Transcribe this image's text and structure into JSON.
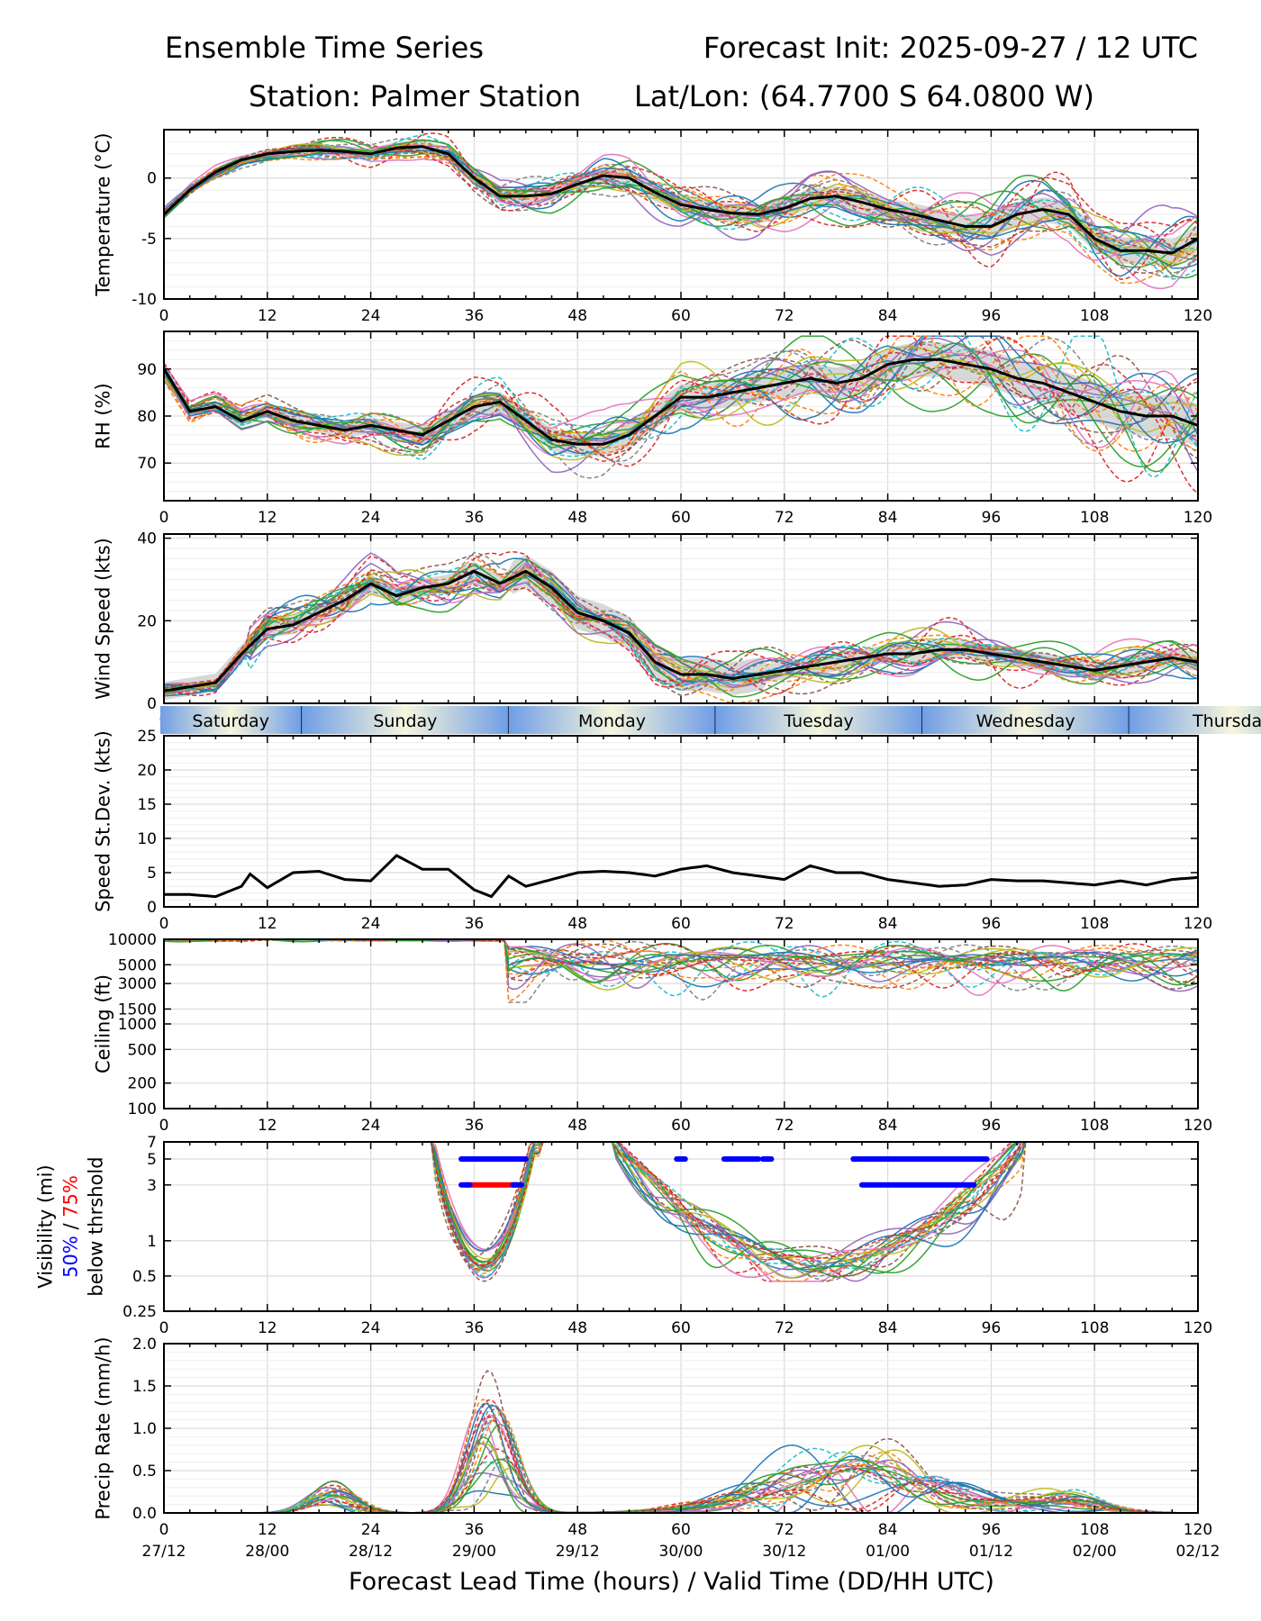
{
  "header": {
    "title_left": "Ensemble Time Series",
    "title_right": "Forecast Init: 2025-09-27 / 12 UTC",
    "station": "Station: Palmer Station",
    "latlon": "Lat/Lon: (64.7700 S 64.0800 W)"
  },
  "x_axis": {
    "label": "Forecast Lead Time (hours) / Valid Time (DD/HH UTC)",
    "ticks": [
      0,
      12,
      24,
      36,
      48,
      60,
      72,
      84,
      96,
      108,
      120
    ],
    "tick_labels": [
      "0",
      "12",
      "24",
      "36",
      "48",
      "60",
      "72",
      "84",
      "96",
      "108",
      "120"
    ],
    "valid_time_labels": [
      "27/12",
      "28/00",
      "28/12",
      "29/00",
      "29/12",
      "30/00",
      "30/12",
      "01/00",
      "01/12",
      "02/00",
      "02/12"
    ],
    "range": [
      0,
      120
    ]
  },
  "day_band": {
    "days": [
      {
        "label": "Saturday",
        "start": -0.5,
        "end": 16
      },
      {
        "label": "Sunday",
        "start": 16,
        "end": 40
      },
      {
        "label": "Monday",
        "start": 40,
        "end": 64
      },
      {
        "label": "Tuesday",
        "start": 64,
        "end": 88
      },
      {
        "label": "Wednesday",
        "start": 88,
        "end": 112
      },
      {
        "label": "Thursday",
        "start": 112,
        "end": 136
      }
    ],
    "colors": {
      "edge": "#6f9de6",
      "center": "#f6f6dc"
    }
  },
  "colors": {
    "mean": "#000000",
    "spread": "#c8c8c8",
    "members": [
      "#1f77b4",
      "#ff7f0e",
      "#2ca02c",
      "#d62728",
      "#9467bd",
      "#8c564b",
      "#e377c2",
      "#7f7f7f",
      "#bcbd22",
      "#17becf"
    ],
    "vis50": "#0000ff",
    "vis75": "#ff0000"
  },
  "chart_data": [
    {
      "type": "line",
      "id": "temperature",
      "ylabel": "Temperature (°C)",
      "ylim": [
        -10,
        4
      ],
      "yticks": [
        -10,
        -5,
        0
      ],
      "members": 24,
      "x": [
        0,
        3,
        6,
        9,
        12,
        15,
        18,
        21,
        24,
        27,
        30,
        33,
        36,
        39,
        42,
        45,
        48,
        51,
        54,
        57,
        60,
        63,
        66,
        69,
        72,
        75,
        78,
        81,
        84,
        87,
        90,
        93,
        96,
        99,
        102,
        105,
        108,
        111,
        114,
        117,
        120
      ],
      "series": [
        {
          "name": "ensemble mean",
          "values": [
            -3,
            -1,
            0.5,
            1.5,
            2,
            2.2,
            2.3,
            2.2,
            2,
            2.5,
            2.6,
            2,
            0,
            -1.5,
            -1.5,
            -1.3,
            -0.5,
            0.2,
            0,
            -1.2,
            -2.2,
            -2.6,
            -2.9,
            -3,
            -2.5,
            -1.7,
            -1.5,
            -2,
            -2.6,
            -3,
            -3.5,
            -4,
            -4,
            -3,
            -2.6,
            -3,
            -5,
            -6,
            -6,
            -6.2,
            -5
          ]
        }
      ]
    },
    {
      "type": "line",
      "id": "rh",
      "ylabel": "RH (%)",
      "ylim": [
        62,
        98
      ],
      "yticks": [
        70,
        80,
        90
      ],
      "members": 24,
      "x": [
        0,
        1,
        3,
        6,
        9,
        12,
        15,
        18,
        21,
        24,
        27,
        30,
        33,
        36,
        39,
        42,
        45,
        48,
        51,
        54,
        57,
        60,
        63,
        66,
        69,
        72,
        75,
        78,
        81,
        84,
        87,
        90,
        93,
        96,
        99,
        102,
        105,
        108,
        111,
        114,
        117,
        120
      ],
      "series": [
        {
          "name": "ensemble mean",
          "values": [
            90,
            87,
            81,
            82,
            79,
            81,
            79,
            78,
            77,
            78,
            77,
            76,
            79,
            82,
            83,
            79,
            75,
            74,
            74,
            76,
            80,
            84,
            84,
            85,
            86,
            87,
            88,
            87,
            88,
            91,
            92,
            92,
            91,
            90,
            88,
            87,
            85,
            83,
            81,
            80,
            80,
            78
          ]
        }
      ]
    },
    {
      "type": "line",
      "id": "wind",
      "ylabel": "Wind Speed (kts)",
      "ylim": [
        0,
        41
      ],
      "yticks": [
        0,
        20,
        40
      ],
      "members": 24,
      "x": [
        0,
        3,
        6,
        9,
        12,
        15,
        18,
        21,
        24,
        27,
        30,
        33,
        36,
        39,
        42,
        45,
        48,
        51,
        54,
        57,
        60,
        63,
        66,
        69,
        72,
        75,
        78,
        81,
        84,
        87,
        90,
        93,
        96,
        99,
        102,
        105,
        108,
        111,
        114,
        117,
        120
      ],
      "series": [
        {
          "name": "ensemble mean",
          "values": [
            3,
            4,
            5,
            12,
            18,
            19,
            22,
            25,
            29,
            26,
            28,
            29,
            32,
            29,
            32,
            28,
            22,
            20,
            17,
            10,
            7,
            7,
            6,
            7,
            8,
            9,
            10,
            11,
            12,
            12,
            13,
            13,
            12,
            11,
            10,
            9,
            8,
            9,
            10,
            11,
            10
          ]
        }
      ]
    },
    {
      "type": "line",
      "id": "speed_stdev",
      "ylabel": "Speed St.Dev. (kts)",
      "ylim": [
        0,
        25
      ],
      "yticks": [
        0,
        5,
        10,
        15,
        20,
        25
      ],
      "x": [
        0,
        3,
        6,
        9,
        10,
        12,
        15,
        18,
        21,
        24,
        27,
        30,
        33,
        36,
        38,
        40,
        42,
        45,
        48,
        51,
        54,
        57,
        60,
        63,
        66,
        69,
        72,
        75,
        78,
        81,
        84,
        87,
        90,
        93,
        96,
        99,
        102,
        105,
        108,
        111,
        114,
        117,
        120
      ],
      "series": [
        {
          "name": "std dev",
          "values": [
            1.8,
            1.8,
            1.5,
            3,
            4.8,
            2.8,
            5,
            5.2,
            4,
            3.8,
            7.5,
            5.5,
            5.5,
            2.5,
            1.5,
            4.5,
            3,
            4,
            5,
            5.2,
            5,
            4.5,
            5.5,
            6,
            5,
            4.5,
            4,
            6,
            5,
            5,
            4,
            3.5,
            3,
            3.2,
            4,
            3.8,
            3.8,
            3.5,
            3.2,
            3.8,
            3.2,
            4,
            4.3
          ]
        }
      ]
    },
    {
      "type": "line",
      "id": "ceiling",
      "ylabel": "Ceiling (ft)",
      "yscale": "log",
      "ylim": [
        100,
        10000
      ],
      "yticks": [
        100,
        200,
        500,
        1000,
        1500,
        3000,
        5000,
        10000
      ],
      "ytick_labels": [
        "100",
        "200",
        "500",
        "1000",
        "1500",
        "3000",
        "5000",
        "10000"
      ],
      "members": 24
    },
    {
      "type": "line",
      "id": "visibility",
      "ylabel_parts": [
        "Visibility (mi)",
        "50%",
        "/",
        "75%",
        "below thrshold"
      ],
      "yscale": "log",
      "ylim": [
        0.25,
        7
      ],
      "yticks": [
        0.25,
        0.5,
        1,
        3,
        5,
        7
      ],
      "ytick_labels": [
        "0.25",
        "0.5",
        "1",
        "3",
        "5",
        "7"
      ],
      "members": 24,
      "threshold_bars": [
        {
          "level": 5,
          "pct": 75,
          "x0": 35,
          "x1": 42
        },
        {
          "level": 3,
          "pct": 75,
          "x0": 35,
          "x1": 41
        },
        {
          "level": 5,
          "pct": 50,
          "x0": 34.5,
          "x1": 42
        },
        {
          "level": 3,
          "pct": 50,
          "x0": 34.5,
          "x1": 35.5
        },
        {
          "level": 3,
          "pct": 50,
          "x0": 40.5,
          "x1": 41.5
        },
        {
          "level": 5,
          "pct": 50,
          "x0": 59.5,
          "x1": 60.5
        },
        {
          "level": 5,
          "pct": 50,
          "x0": 65,
          "x1": 69
        },
        {
          "level": 5,
          "pct": 50,
          "x0": 69.5,
          "x1": 70.5
        },
        {
          "level": 5,
          "pct": 75,
          "x0": 80,
          "x1": 82
        },
        {
          "level": 5,
          "pct": 75,
          "x0": 85,
          "x1": 89
        },
        {
          "level": 5,
          "pct": 50,
          "x0": 80,
          "x1": 95.5
        },
        {
          "level": 3,
          "pct": 50,
          "x0": 81,
          "x1": 94
        }
      ]
    },
    {
      "type": "line",
      "id": "precip",
      "ylabel": "Precip Rate (mm/h)",
      "ylim": [
        0,
        2
      ],
      "yticks": [
        0,
        0.5,
        1,
        1.5,
        2
      ],
      "ytick_labels": [
        "0.0",
        "0.5",
        "1.0",
        "1.5",
        "2.0"
      ],
      "members": 24
    }
  ]
}
